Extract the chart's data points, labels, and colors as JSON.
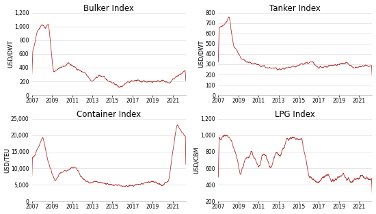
{
  "title_bulker": "Bulker Index",
  "title_tanker": "Tanker Index",
  "title_container": "Container Index",
  "title_lpg": "LPG Index",
  "ylabel_bulker": "USD/DWT",
  "ylabel_tanker": "USD/DWT",
  "ylabel_container": "USD/TEU",
  "ylabel_lpg": "USD/CBM",
  "line_color": "#b03030",
  "bg_color": "#ffffff",
  "grid_color": "#dddddd",
  "title_fontsize": 8.5,
  "label_fontsize": 6,
  "tick_fontsize": 5.5,
  "xlim": [
    2007,
    2022.3
  ],
  "xticks": [
    2007,
    2009,
    2011,
    2013,
    2015,
    2017,
    2019,
    2021
  ],
  "bulker_ylim": [
    0,
    1200
  ],
  "bulker_yticks": [
    0,
    200,
    400,
    600,
    800,
    1000,
    1200
  ],
  "tanker_ylim": [
    0,
    800
  ],
  "tanker_yticks": [
    0,
    100,
    200,
    300,
    400,
    500,
    600,
    700,
    800
  ],
  "container_ylim": [
    0,
    25000
  ],
  "container_yticks": [
    0,
    5000,
    10000,
    15000,
    20000,
    25000
  ],
  "lpg_ylim": [
    200,
    1200
  ],
  "lpg_yticks": [
    200,
    400,
    600,
    800,
    1000,
    1200
  ]
}
